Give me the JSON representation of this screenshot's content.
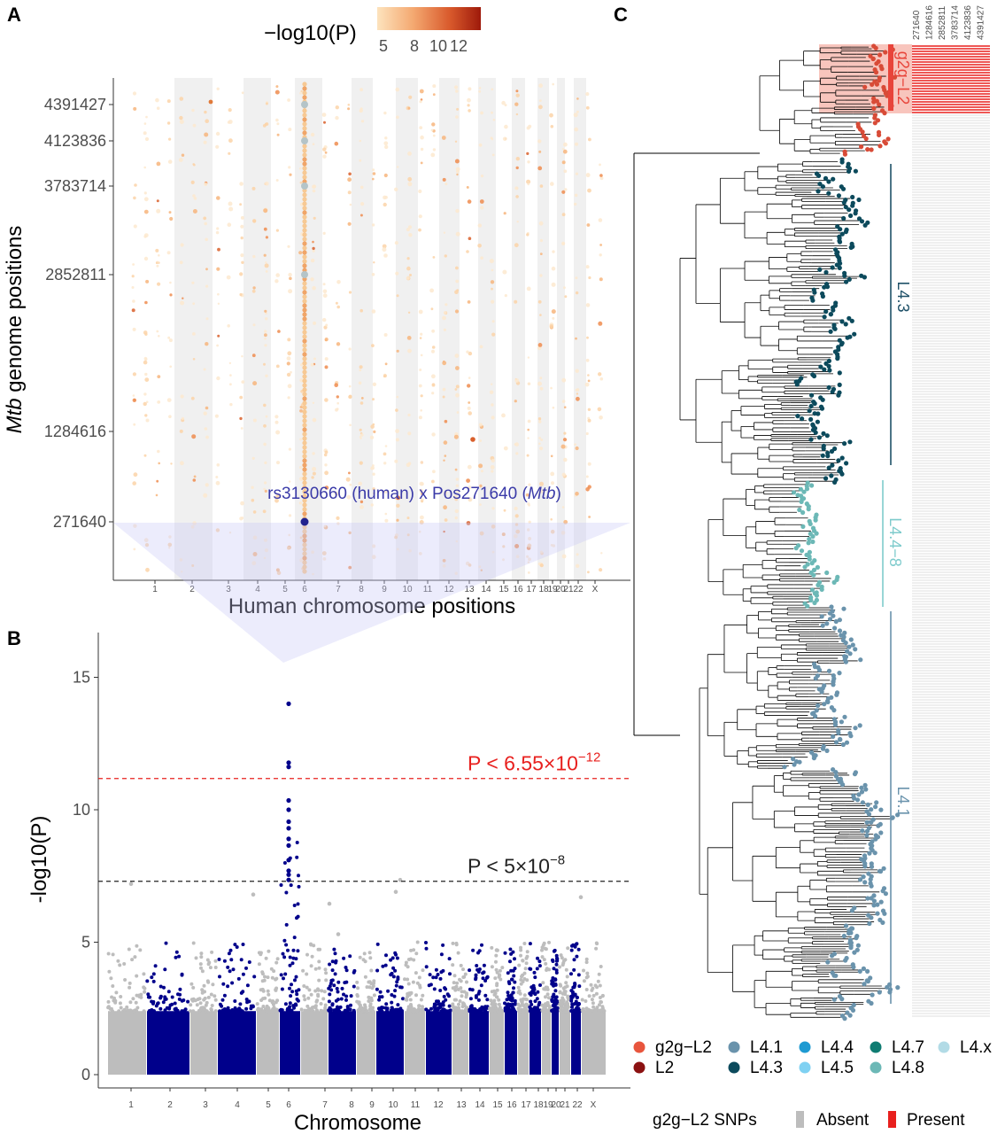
{
  "panel_labels": {
    "a": "A",
    "b": "B",
    "c": "C"
  },
  "chart_data": [
    {
      "panel": "A",
      "type": "scatter",
      "ylabel_italic": "Mtb",
      "ylabel_rest": " genome positions",
      "xlabel": "Human chromosome positions",
      "y_ticks": [
        "4391427",
        "4123836",
        "3783714",
        "2852811",
        "1284616",
        "271640"
      ],
      "x_ticks": [
        "1",
        "2",
        "3",
        "4",
        "5",
        "6",
        "7",
        "8",
        "9",
        "10",
        "11",
        "12",
        "13",
        "14",
        "15",
        "16",
        "17",
        "18",
        "19",
        "20",
        "21",
        "22",
        "X"
      ],
      "colorbar": {
        "title": "−log10(P)",
        "tick_labels": [
          "5",
          "8",
          "10",
          "12"
        ],
        "colors": [
          "#fde3bd",
          "#f4a870",
          "#d95a2c",
          "#9e1a0b"
        ]
      },
      "highlight_label_prefix": "rs3130660 (human) x Pos271640 (",
      "highlight_label_italic": "Mtb",
      "highlight_label_suffix": ")",
      "highlight": {
        "chromosome": "6",
        "mtb_position": 271640
      }
    },
    {
      "panel": "B",
      "type": "scatter",
      "xlabel": "Chromosome",
      "ylabel": "-log10(P)",
      "ylim": [
        0,
        16.5
      ],
      "y_ticks": [
        0,
        5,
        10,
        15
      ],
      "categories": [
        "1",
        "2",
        "3",
        "4",
        "5",
        "6",
        "7",
        "8",
        "9",
        "10",
        "11",
        "12",
        "13",
        "14",
        "15",
        "16",
        "17",
        "18",
        "19",
        "20",
        "21",
        "22",
        "X"
      ],
      "thresholds": [
        {
          "value": 11.18,
          "label_base": "P < 6.55×10",
          "label_exp": "−12",
          "color": "#e8201e"
        },
        {
          "value": 7.3,
          "label_base": "P < 5×10",
          "label_exp": "−8",
          "color": "#222222"
        }
      ],
      "colors": {
        "odd": "#bdbdbd",
        "even": "#00008b"
      },
      "peak": {
        "chromosome": "6",
        "max_value": 14.0
      }
    },
    {
      "panel": "C",
      "type": "tree",
      "snp_columns": [
        "271640",
        "1284616",
        "2852811",
        "3783714",
        "4123836",
        "4391427"
      ],
      "clades": [
        {
          "name": "g2g−L2",
          "color": "#e8443a"
        },
        {
          "name": "L4.3",
          "color": "#1f5168"
        },
        {
          "name": "L4.4−8",
          "color": "#7ecbcc"
        },
        {
          "name": "L4.1",
          "color": "#6a93ac"
        }
      ],
      "legend": [
        {
          "label": "g2g−L2",
          "color": "#e8553d"
        },
        {
          "label": "L2",
          "color": "#8b1111"
        },
        {
          "label": "L4.1",
          "color": "#6a93ac"
        },
        {
          "label": "L4.3",
          "color": "#0c4a5c"
        },
        {
          "label": "L4.4",
          "color": "#1e9ad2"
        },
        {
          "label": "L4.5",
          "color": "#7fd1f2"
        },
        {
          "label": "L4.7",
          "color": "#0f7c72"
        },
        {
          "label": "L4.8",
          "color": "#6cb8b6"
        },
        {
          "label": "L4.x",
          "color": "#b2dbe6"
        }
      ],
      "snp_legend": {
        "title": "g2g−L2 SNPs",
        "absent": "Absent",
        "present": "Present",
        "absent_color": "#bdbdbd",
        "present_color": "#e8201e"
      }
    }
  ]
}
